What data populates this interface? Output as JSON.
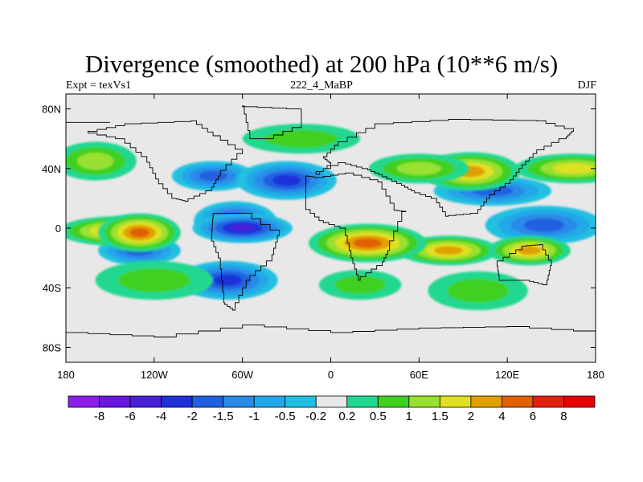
{
  "title": "Divergence (smoothed) at 200 hPa (10**6 m/s)",
  "subtitle_left": "Expt = texVs1",
  "subtitle_center": "222_4_MaBP",
  "subtitle_right": "DJF",
  "chart_data": {
    "type": "heatmap",
    "title": "Divergence (smoothed) at 200 hPa (10**6 m/s)",
    "variable": "Divergence (smoothed)",
    "level": "200 hPa",
    "units": "10**6 m/s",
    "experiment": "texVs1",
    "case": "222_4_MaBP",
    "season": "DJF",
    "xlim": [
      -180,
      180
    ],
    "ylim": [
      -90,
      90
    ],
    "x_ticks": [
      -180,
      -120,
      -60,
      0,
      60,
      120,
      180
    ],
    "x_tick_labels": [
      "180",
      "120W",
      "60W",
      "0",
      "60E",
      "120E",
      "180"
    ],
    "y_ticks": [
      80,
      40,
      0,
      -40,
      -80
    ],
    "y_tick_labels": [
      "80N",
      "40N",
      "0",
      "40S",
      "80S"
    ],
    "colorbar": {
      "levels": [
        "-8",
        "-6",
        "-4",
        "-2",
        "-1.5",
        "-1",
        "-0.5",
        "-0.2",
        "0.2",
        "0.5",
        "1",
        "1.5",
        "2",
        "4",
        "6",
        "8"
      ],
      "colors": [
        "#8a20e8",
        "#6a18e0",
        "#4a20d8",
        "#1f30d8",
        "#2060e0",
        "#2a8ae8",
        "#20a8e8",
        "#20c0e0",
        "#e8e8e8",
        "#20d890",
        "#40d020",
        "#98e030",
        "#e0e020",
        "#e0a000",
        "#e06000",
        "#e02010",
        "#e80000"
      ]
    },
    "features": [
      {
        "lon": -80,
        "lat": 35,
        "value": -1.5
      },
      {
        "lon": -30,
        "lat": 32,
        "value": -2
      },
      {
        "lon": 110,
        "lat": 25,
        "value": -1.5
      },
      {
        "lon": -65,
        "lat": 5,
        "value": -2
      },
      {
        "lon": -60,
        "lat": 0,
        "value": -4
      },
      {
        "lon": 145,
        "lat": 2,
        "value": -1.5
      },
      {
        "lon": -130,
        "lat": -15,
        "value": -1.5
      },
      {
        "lon": -70,
        "lat": -35,
        "value": -2
      },
      {
        "lon": -145,
        "lat": -2,
        "value": 2
      },
      {
        "lon": -130,
        "lat": -3,
        "value": 4
      },
      {
        "lon": 80,
        "lat": -15,
        "value": 2
      },
      {
        "lon": 25,
        "lat": -10,
        "value": 4
      },
      {
        "lon": 135,
        "lat": -15,
        "value": 2
      },
      {
        "lon": 95,
        "lat": 38,
        "value": 2
      },
      {
        "lon": 165,
        "lat": 40,
        "value": 1.5
      },
      {
        "lon": -160,
        "lat": 45,
        "value": 1
      },
      {
        "lon": 60,
        "lat": 40,
        "value": 1
      },
      {
        "lon": -120,
        "lat": -35,
        "value": 0.5
      },
      {
        "lon": 20,
        "lat": -38,
        "value": 0.5
      },
      {
        "lon": 100,
        "lat": -42,
        "value": 0.5
      },
      {
        "lon": -20,
        "lat": 60,
        "value": 0.5
      }
    ]
  }
}
